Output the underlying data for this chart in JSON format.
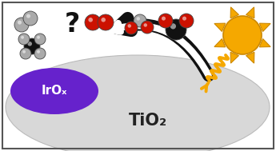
{
  "fig_width": 3.45,
  "fig_height": 1.89,
  "dpi": 100,
  "bg_color": "#ffffff",
  "border_color": "#555555",
  "tio2_color": "#d8d8d8",
  "tio2_edge": "#bbbbbb",
  "tio2_text": "TiO₂",
  "irox_color": "#6622cc",
  "irox_text": "IrOₓ",
  "sun_color": "#f5a800",
  "sun_edge": "#cc8800",
  "arrow_face": "#ffffff",
  "arrow_edge": "#111111",
  "wavy_arrow_color": "#f5a800",
  "question_color": "#111111",
  "gray_sphere": "#aaaaaa",
  "black_sphere": "#111111",
  "red_sphere": "#cc1100",
  "sphere_edge": "#444444"
}
